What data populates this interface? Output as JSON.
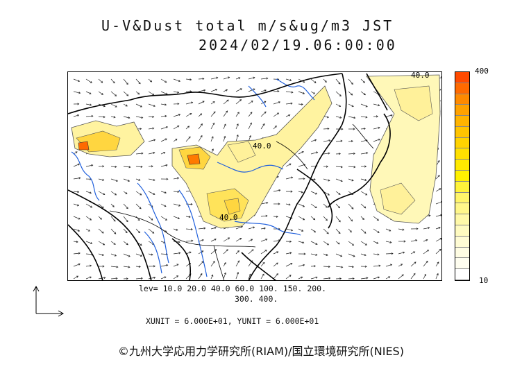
{
  "title": {
    "line1": "U-V&Dust total m/s&ug/m3 JST",
    "line2": "2024/02/19.06:00:00"
  },
  "map": {
    "contour_labels": [
      "40.0",
      "40.0",
      "40.0"
    ]
  },
  "colorbar": {
    "max_label": "400",
    "min_label": "10",
    "colors": [
      "#ff4a00",
      "#ff6a00",
      "#ff8a00",
      "#ffa200",
      "#ffb400",
      "#ffc400",
      "#ffd300",
      "#ffe000",
      "#ffea00",
      "#fff100",
      "#fff33a",
      "#fff56a",
      "#fff78a",
      "#fff9a8",
      "#fffbc0",
      "#fffcd4",
      "#fffde3",
      "#fffef0",
      "#ffffff"
    ]
  },
  "legend": {
    "levels_line1": "lev= 10.0 20.0 40.0 60.0 100. 150. 200.",
    "levels_line2": "300. 400.",
    "units": "XUNIT = 6.000E+01, YUNIT = 6.000E+01"
  },
  "copyright": "©九州大学応用力学研究所(RIAM)/国立環境研究所(NIES)"
}
